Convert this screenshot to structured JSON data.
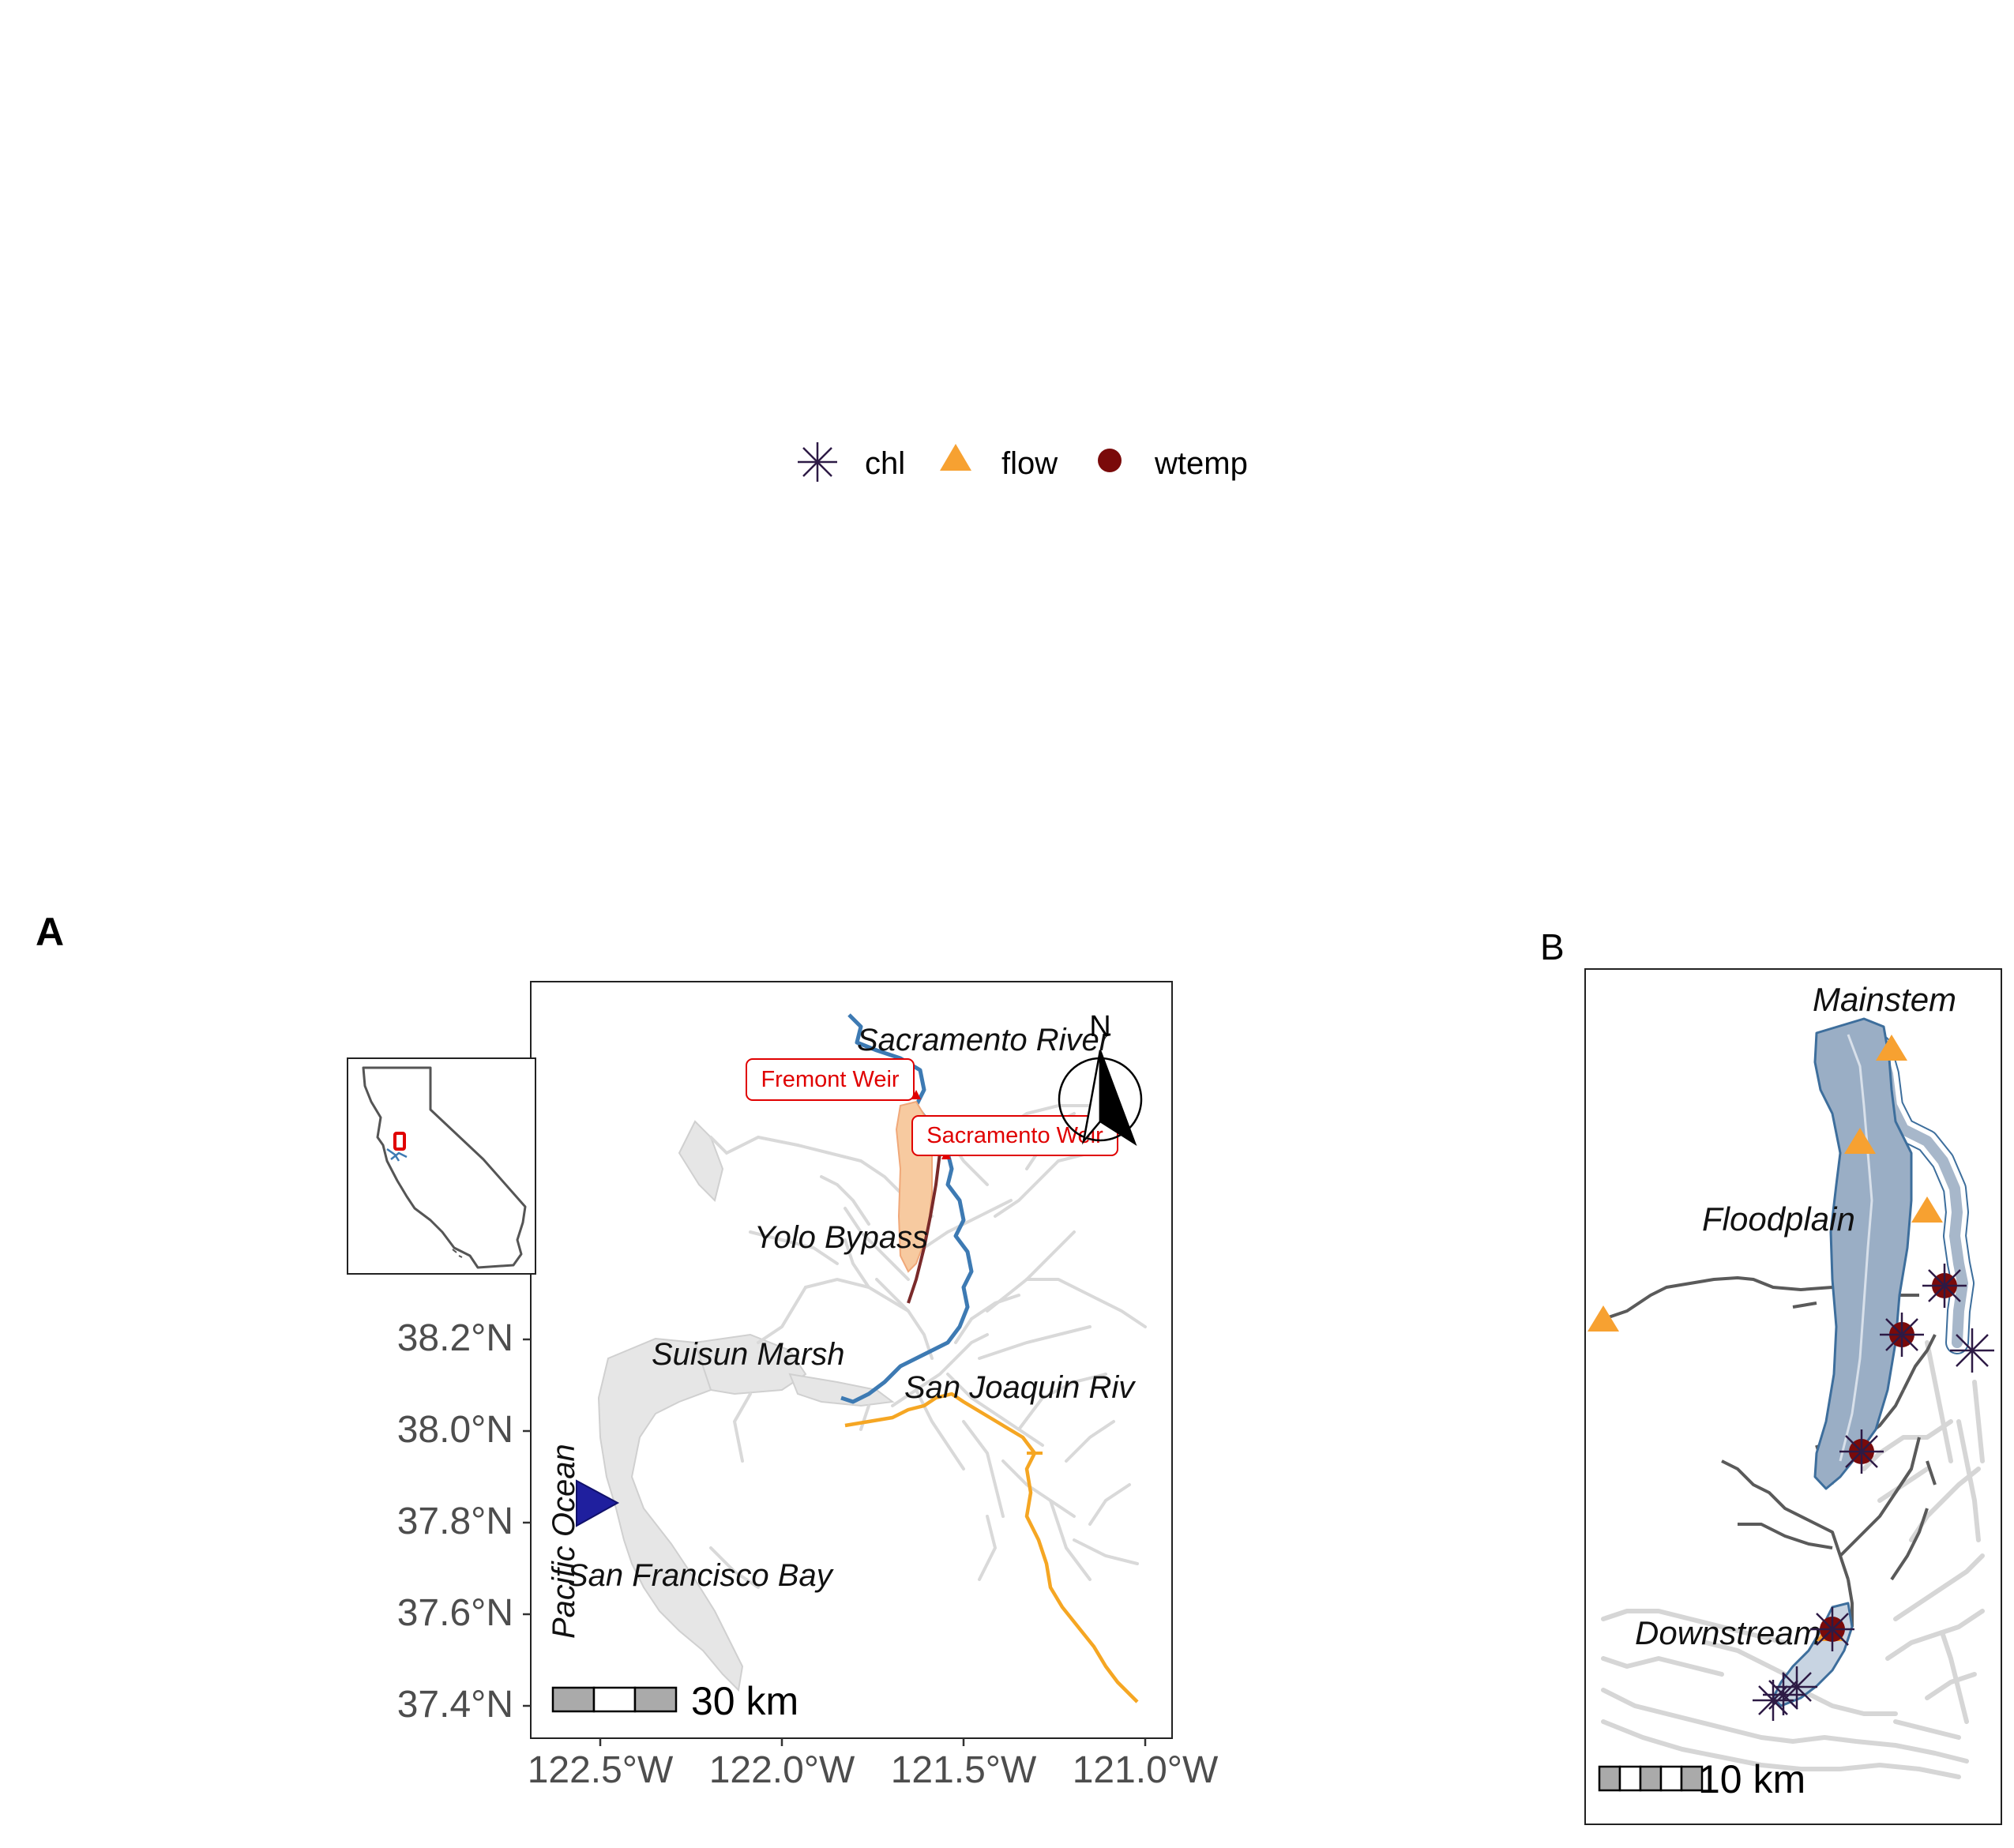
{
  "legend": {
    "items": [
      {
        "label": "chl",
        "shape": "asterisk",
        "color": "#2d1a45"
      },
      {
        "label": "flow",
        "shape": "triangle",
        "color": "#f7a131"
      },
      {
        "label": "wtemp",
        "shape": "circle",
        "color": "#7a0a0a"
      }
    ]
  },
  "panel_a": {
    "tag": "A",
    "labels": {
      "sacramento_river": "Sacramento River",
      "yolo_bypass": "Yolo Bypass",
      "suisun_marsh": "Suisun Marsh",
      "san_joaquin_river": "San Joaquin Riv",
      "san_francisco_bay": "San Francisco Bay",
      "pacific_ocean": "Pacific Ocean",
      "fremont_weir": "Fremont Weir",
      "sacramento_weir": "Sacramento Weir"
    },
    "north_arrow": "N",
    "scale_bar": "30 km",
    "y_ticks": [
      "38.2°N",
      "38.0°N",
      "37.8°N",
      "37.6°N",
      "37.4°N"
    ],
    "x_ticks": [
      "122.5°W",
      "122.0°W",
      "121.5°W",
      "121.0°W"
    ]
  },
  "panel_b": {
    "tag": "B",
    "labels": {
      "mainstem": "Mainstem",
      "floodplain": "Floodplain",
      "downstream": "Downstream"
    },
    "scale_bar": "10 km"
  },
  "colors": {
    "sacramento_river": "#3d7ab3",
    "san_joaquin_river": "#f5a623",
    "yolo_bypass_fill": "#f7caa0",
    "weir_label": "#e00000",
    "background_waterways": "#d9d9d9",
    "pacific_marker": "#1f1f9e",
    "floodplain_fill": "#9aaec5",
    "floodplain_outline": "#3d6e9c",
    "drainage": "#5a5a5a"
  }
}
